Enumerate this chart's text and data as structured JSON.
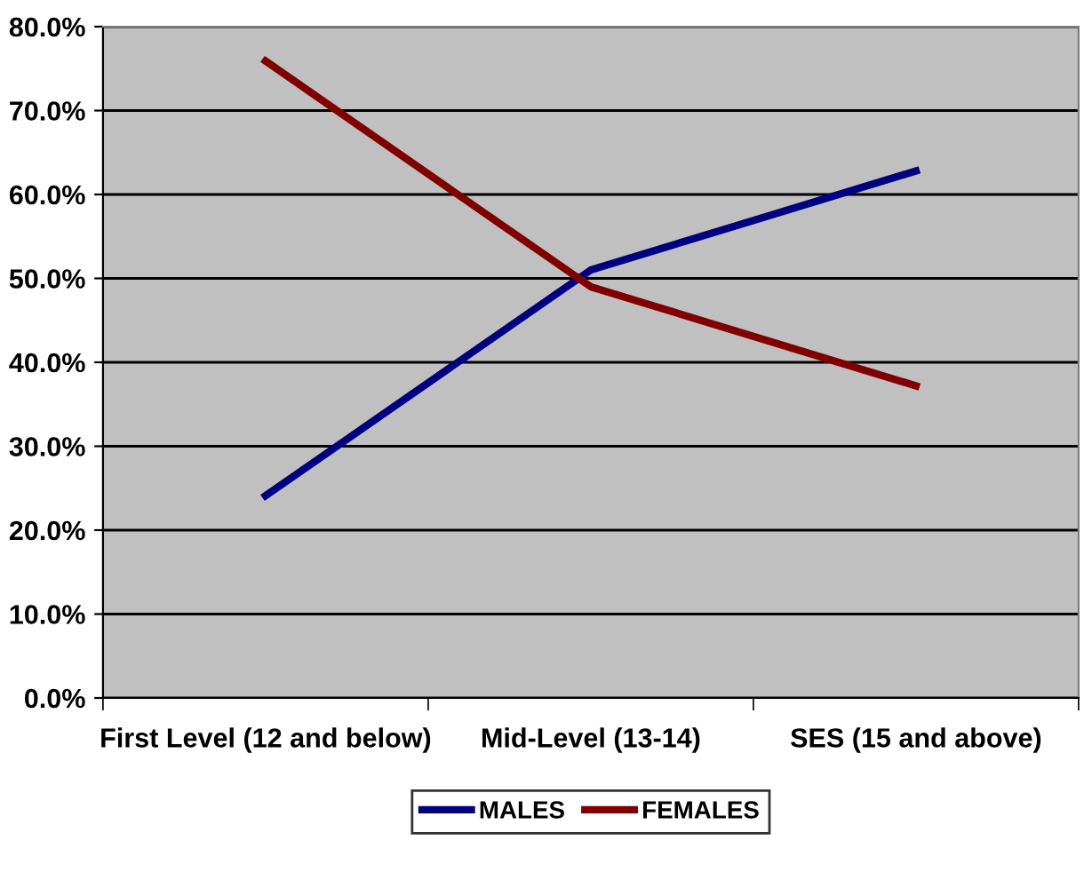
{
  "chart_data": {
    "type": "line",
    "categories": [
      "First Level (12 and below)",
      "Mid-Level (13-14)",
      "SES (15 and above)"
    ],
    "series": [
      {
        "name": "MALES",
        "color": "#000080",
        "values": [
          24.1,
          51.0,
          62.8
        ]
      },
      {
        "name": "FEMALES",
        "color": "#800000",
        "values": [
          75.9,
          49.0,
          37.2
        ]
      }
    ],
    "ylim": [
      0,
      80
    ],
    "yticks": [
      {
        "value": 0,
        "label": "0.0%"
      },
      {
        "value": 10,
        "label": "10.0%"
      },
      {
        "value": 20,
        "label": "20.0%"
      },
      {
        "value": 30,
        "label": "30.0%"
      },
      {
        "value": 40,
        "label": "40.0%"
      },
      {
        "value": 50,
        "label": "50.0%"
      },
      {
        "value": 60,
        "label": "60.0%"
      },
      {
        "value": 70,
        "label": "70.0%"
      },
      {
        "value": 80,
        "label": "80.0%"
      }
    ],
    "grid": "y",
    "legend": "bottom",
    "marker": "none",
    "line_style": "solid"
  }
}
